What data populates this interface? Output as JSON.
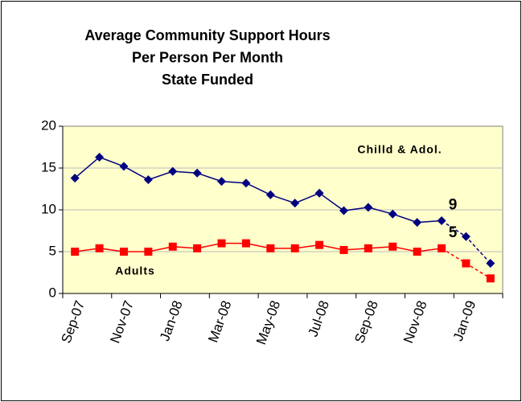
{
  "chart_data": {
    "type": "line",
    "title": [
      "Average Community Support Hours",
      "Per Person Per Month",
      "State Funded"
    ],
    "categories": [
      "Sep-07",
      null,
      "Nov-07",
      null,
      "Jan-08",
      null,
      "Mar-08",
      null,
      "May-08",
      null,
      "Jul-08",
      null,
      "Sep-08",
      null,
      "Nov-08",
      null,
      "Jan-09",
      null
    ],
    "series": [
      {
        "name": "Chilld & Adol.",
        "color": "#000080",
        "marker": "diamond",
        "dashed_from": 15,
        "values": [
          13.8,
          16.3,
          15.2,
          13.6,
          14.6,
          14.4,
          13.4,
          13.2,
          11.8,
          10.8,
          12.0,
          9.9,
          10.3,
          9.5,
          8.5,
          8.7,
          6.8,
          3.6
        ],
        "value_labels": [
          null,
          null,
          null,
          null,
          null,
          null,
          null,
          null,
          null,
          null,
          null,
          null,
          null,
          null,
          null,
          "9",
          null,
          null
        ]
      },
      {
        "name": "Adults",
        "color": "#ff0000",
        "marker": "square",
        "dashed_from": 15,
        "values": [
          5.0,
          5.4,
          5.0,
          5.0,
          5.6,
          5.4,
          6.0,
          6.0,
          5.4,
          5.4,
          5.8,
          5.2,
          5.4,
          5.6,
          5.0,
          5.4,
          3.6,
          1.8
        ],
        "value_labels": [
          null,
          null,
          null,
          null,
          null,
          null,
          null,
          null,
          null,
          null,
          null,
          null,
          null,
          null,
          null,
          "5",
          null,
          null
        ]
      }
    ],
    "ylim": [
      0,
      20
    ],
    "yticks": [
      0,
      5,
      10,
      15,
      20
    ],
    "grid": true,
    "plot_background": "#ffffcc"
  }
}
